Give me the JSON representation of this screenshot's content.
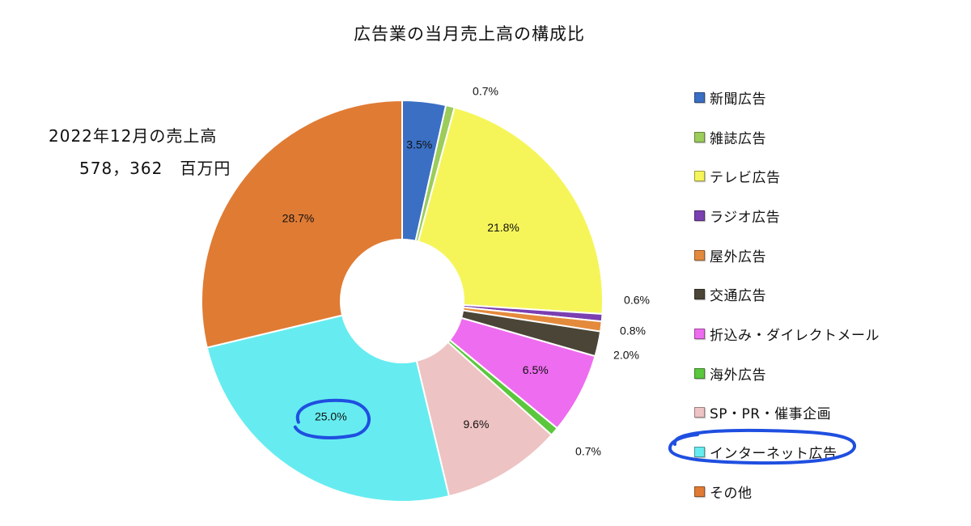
{
  "title": "広告業の当月売上高の構成比",
  "total": {
    "line1": "2022年12月の売上高",
    "line2": "578，362　百万円"
  },
  "chart_data": {
    "type": "pie",
    "title": "広告業の当月売上高の構成比",
    "donut": true,
    "legend_position": "right",
    "unit": "%",
    "highlighted": "インターネット広告",
    "slices": [
      {
        "name": "新聞広告",
        "value": 3.5,
        "label": "3.5%",
        "color": "#3a6fc4"
      },
      {
        "name": "雑誌広告",
        "value": 0.7,
        "label": "0.7%",
        "color": "#9ccc5a"
      },
      {
        "name": "テレビ広告",
        "value": 21.8,
        "label": "21.8%",
        "color": "#f5f55a"
      },
      {
        "name": "ラジオ広告",
        "value": 0.6,
        "label": "0.6%",
        "color": "#7a3fb0"
      },
      {
        "name": "屋外広告",
        "value": 0.8,
        "label": "0.8%",
        "color": "#e48a3c"
      },
      {
        "name": "交通広告",
        "value": 2.0,
        "label": "2.0%",
        "color": "#4a4536"
      },
      {
        "name": "折込み・ダイレクトメール",
        "value": 6.5,
        "label": "6.5%",
        "color": "#ee6cef"
      },
      {
        "name": "海外広告",
        "value": 0.7,
        "label": "0.7%",
        "color": "#5ac73c"
      },
      {
        "name": "SP・PR・催事企画",
        "value": 9.6,
        "label": "9.6%",
        "color": "#eec3c3"
      },
      {
        "name": "インターネット広告",
        "value": 25.0,
        "label": "25.0%",
        "color": "#66ecf0"
      },
      {
        "name": "その他",
        "value": 28.7,
        "label": "28.7%",
        "color": "#e07b34"
      }
    ]
  }
}
